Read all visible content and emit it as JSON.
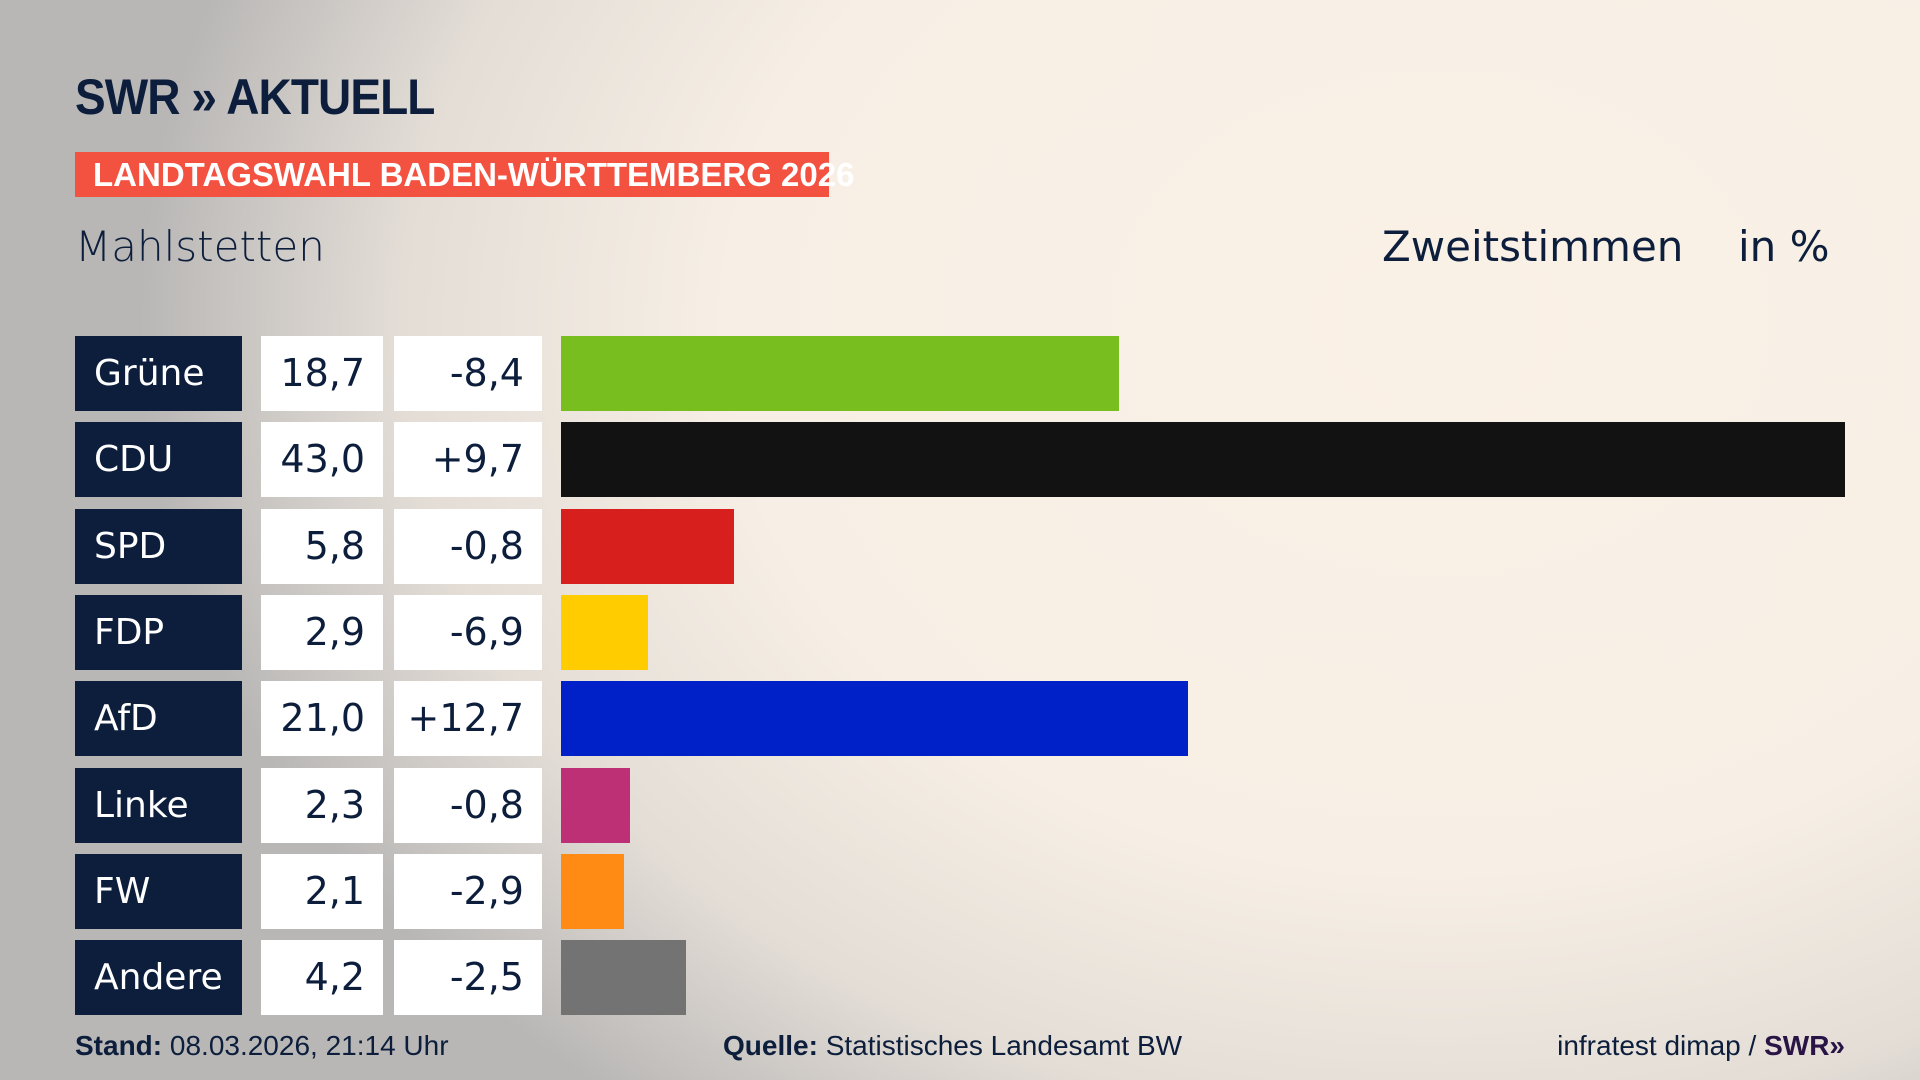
{
  "header": {
    "logo": "SWR » AKTUELL",
    "banner": "LANDTAGSWAHL BADEN-WÜRTTEMBERG 2026",
    "place": "Mahlstetten",
    "metric": "Zweitstimmen",
    "unit": "in %"
  },
  "chart_data": {
    "type": "bar",
    "orientation": "horizontal",
    "title": "Mahlstetten – Zweitstimmen in %",
    "categories": [
      "Grüne",
      "CDU",
      "SPD",
      "FDP",
      "AfD",
      "Linke",
      "FW",
      "Andere"
    ],
    "values": [
      18.7,
      43.0,
      5.8,
      2.9,
      21.0,
      2.3,
      2.1,
      4.2
    ],
    "value_labels": [
      "18,7",
      "43,0",
      "5,8",
      "2,9",
      "21,0",
      "2,3",
      "2,1",
      "4,2"
    ],
    "diff_labels": [
      "-8,4",
      "+9,7",
      "-0,8",
      "-6,9",
      "+12,7",
      "-0,8",
      "-2,9",
      "-2,5"
    ],
    "colors": [
      "#78be1e",
      "#121212",
      "#d71f1d",
      "#ffcc00",
      "#0021c8",
      "#bd3075",
      "#ff8a14",
      "#737373"
    ],
    "xlim": [
      0,
      43.0
    ]
  },
  "footer": {
    "stand_label": "Stand:",
    "stand_value": "08.03.2026, 21:14 Uhr",
    "source_label": "Quelle:",
    "source_value": "Statistisches Landesamt BW",
    "credit": "infratest dimap /",
    "credit_logo": "SWR»"
  }
}
